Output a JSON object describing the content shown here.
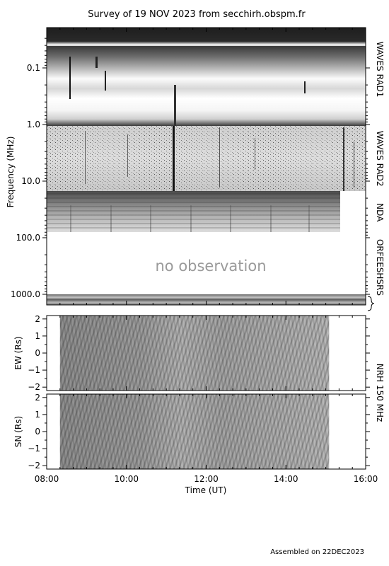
{
  "chart_data": {
    "type": "heatmap",
    "title": "Survey of 19 NOV 2023 from secchirh.obspm.fr",
    "footer": "Assembled on 22DEC2023",
    "xlabel": "Time (UT)",
    "x_ticks": [
      "08:00",
      "10:00",
      "12:00",
      "14:00",
      "16:00"
    ],
    "x_range": [
      "08:00",
      "16:00"
    ],
    "spectrum": {
      "ylabel": "Frequency (MHz)",
      "scale": "log",
      "y_range_mhz": [
        0.02,
        2000
      ],
      "y_ticks": [
        "0.1",
        "1.0",
        "10.0",
        "100.0",
        "1000.0"
      ],
      "no_observation_text": "no observation",
      "instruments": [
        {
          "name": "WAVES RAD1",
          "freq_mhz": [
            0.02,
            1.0
          ],
          "time": [
            "08:00",
            "16:00"
          ]
        },
        {
          "name": "WAVES RAD2",
          "freq_mhz": [
            1.0,
            16.0
          ],
          "time": [
            "08:00",
            "16:00"
          ]
        },
        {
          "name": "NDA",
          "freq_mhz": [
            16.0,
            80.0
          ],
          "time": [
            "08:00",
            "15:25"
          ]
        },
        {
          "name": "ORFEESHSRS",
          "freq_mhz": [
            1000.0,
            2000.0
          ],
          "time": [
            "08:00",
            "16:00"
          ]
        }
      ]
    },
    "nrh": {
      "label": "NRH 150 MHz",
      "time": [
        "08:20",
        "15:05"
      ],
      "panels": [
        {
          "ylabel": "EW (Rs)",
          "y_range": [
            -2.2,
            2.2
          ],
          "y_ticks": [
            "2",
            "1",
            "0",
            "−1",
            "−2"
          ]
        },
        {
          "ylabel": "SN (Rs)",
          "y_range": [
            -2.2,
            2.2
          ],
          "y_ticks": [
            "2",
            "1",
            "0",
            "−1",
            "−2"
          ]
        }
      ]
    },
    "colors": {
      "background": "#ffffff",
      "axes": "#000000",
      "no_observation": "#9a9a9a"
    }
  }
}
